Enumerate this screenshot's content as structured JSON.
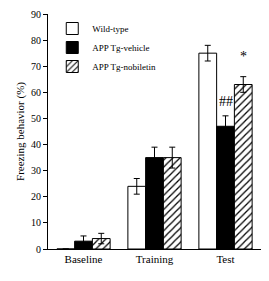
{
  "chart_data": {
    "type": "bar",
    "y_label": "Freezing behavior (%)",
    "categories": [
      "Baseline",
      "Training",
      "Test"
    ],
    "series": [
      {
        "name": "Wild-type",
        "color": "#ffffff",
        "values": [
          0,
          24,
          75
        ],
        "errors": [
          0,
          3,
          3
        ]
      },
      {
        "name": "APP Tg-vehicle",
        "color": "#000000",
        "values": [
          3,
          35,
          47
        ],
        "errors": [
          2,
          4,
          4
        ]
      },
      {
        "name": "APP Tg-nobiletin",
        "color": "#ffffff",
        "marker": "hatch",
        "values": [
          4,
          35,
          63
        ],
        "errors": [
          2,
          4,
          3
        ]
      }
    ],
    "ylim": [
      0,
      90
    ],
    "yticks": [
      0,
      10,
      20,
      30,
      40,
      50,
      60,
      70,
      80,
      90
    ],
    "grid": false,
    "legend": "upper left",
    "annotations": [
      {
        "text": "##",
        "category": "Test",
        "series": "APP Tg-vehicle",
        "y": 53
      },
      {
        "text": "*",
        "category": "Test",
        "series": "APP Tg-nobiletin",
        "y": 70
      }
    ]
  }
}
